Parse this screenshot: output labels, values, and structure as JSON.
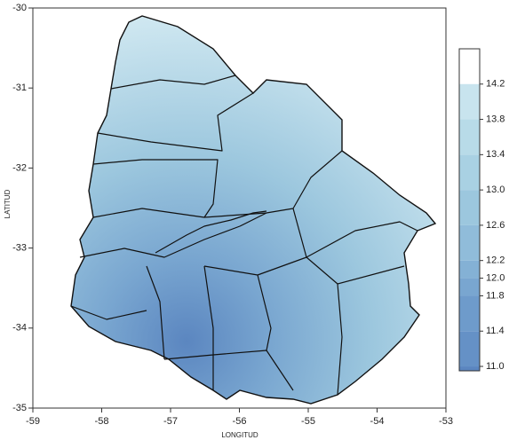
{
  "chart_data": {
    "type": "contour-map",
    "x_label": "LONGITUD",
    "y_label": "LATITUD",
    "xlim": [
      -59,
      -53
    ],
    "xticks": [
      -59,
      -58,
      -57,
      -56,
      -55,
      -54,
      -53
    ],
    "ylim": [
      -35,
      -30
    ],
    "yticks": [
      -30,
      -31,
      -32,
      -33,
      -34,
      -35
    ],
    "colorbar": {
      "lim": [
        10.95,
        14.6
      ],
      "ticks": [
        {
          "value": 11,
          "label": "11.0"
        },
        11.4,
        11.8,
        {
          "value": 12,
          "label": "12.0"
        },
        12.2,
        12.6,
        {
          "value": 13,
          "label": "13.0"
        },
        13.4,
        13.8,
        14.2
      ],
      "colors": [
        "#5b86c0",
        "#6591c6",
        "#6e9bcb",
        "#79a6d0",
        "#84b1d5",
        "#90bcda",
        "#9cc7de",
        "#a9d1e3",
        "#b8dbe8",
        "#c8e4ee"
      ]
    }
  }
}
